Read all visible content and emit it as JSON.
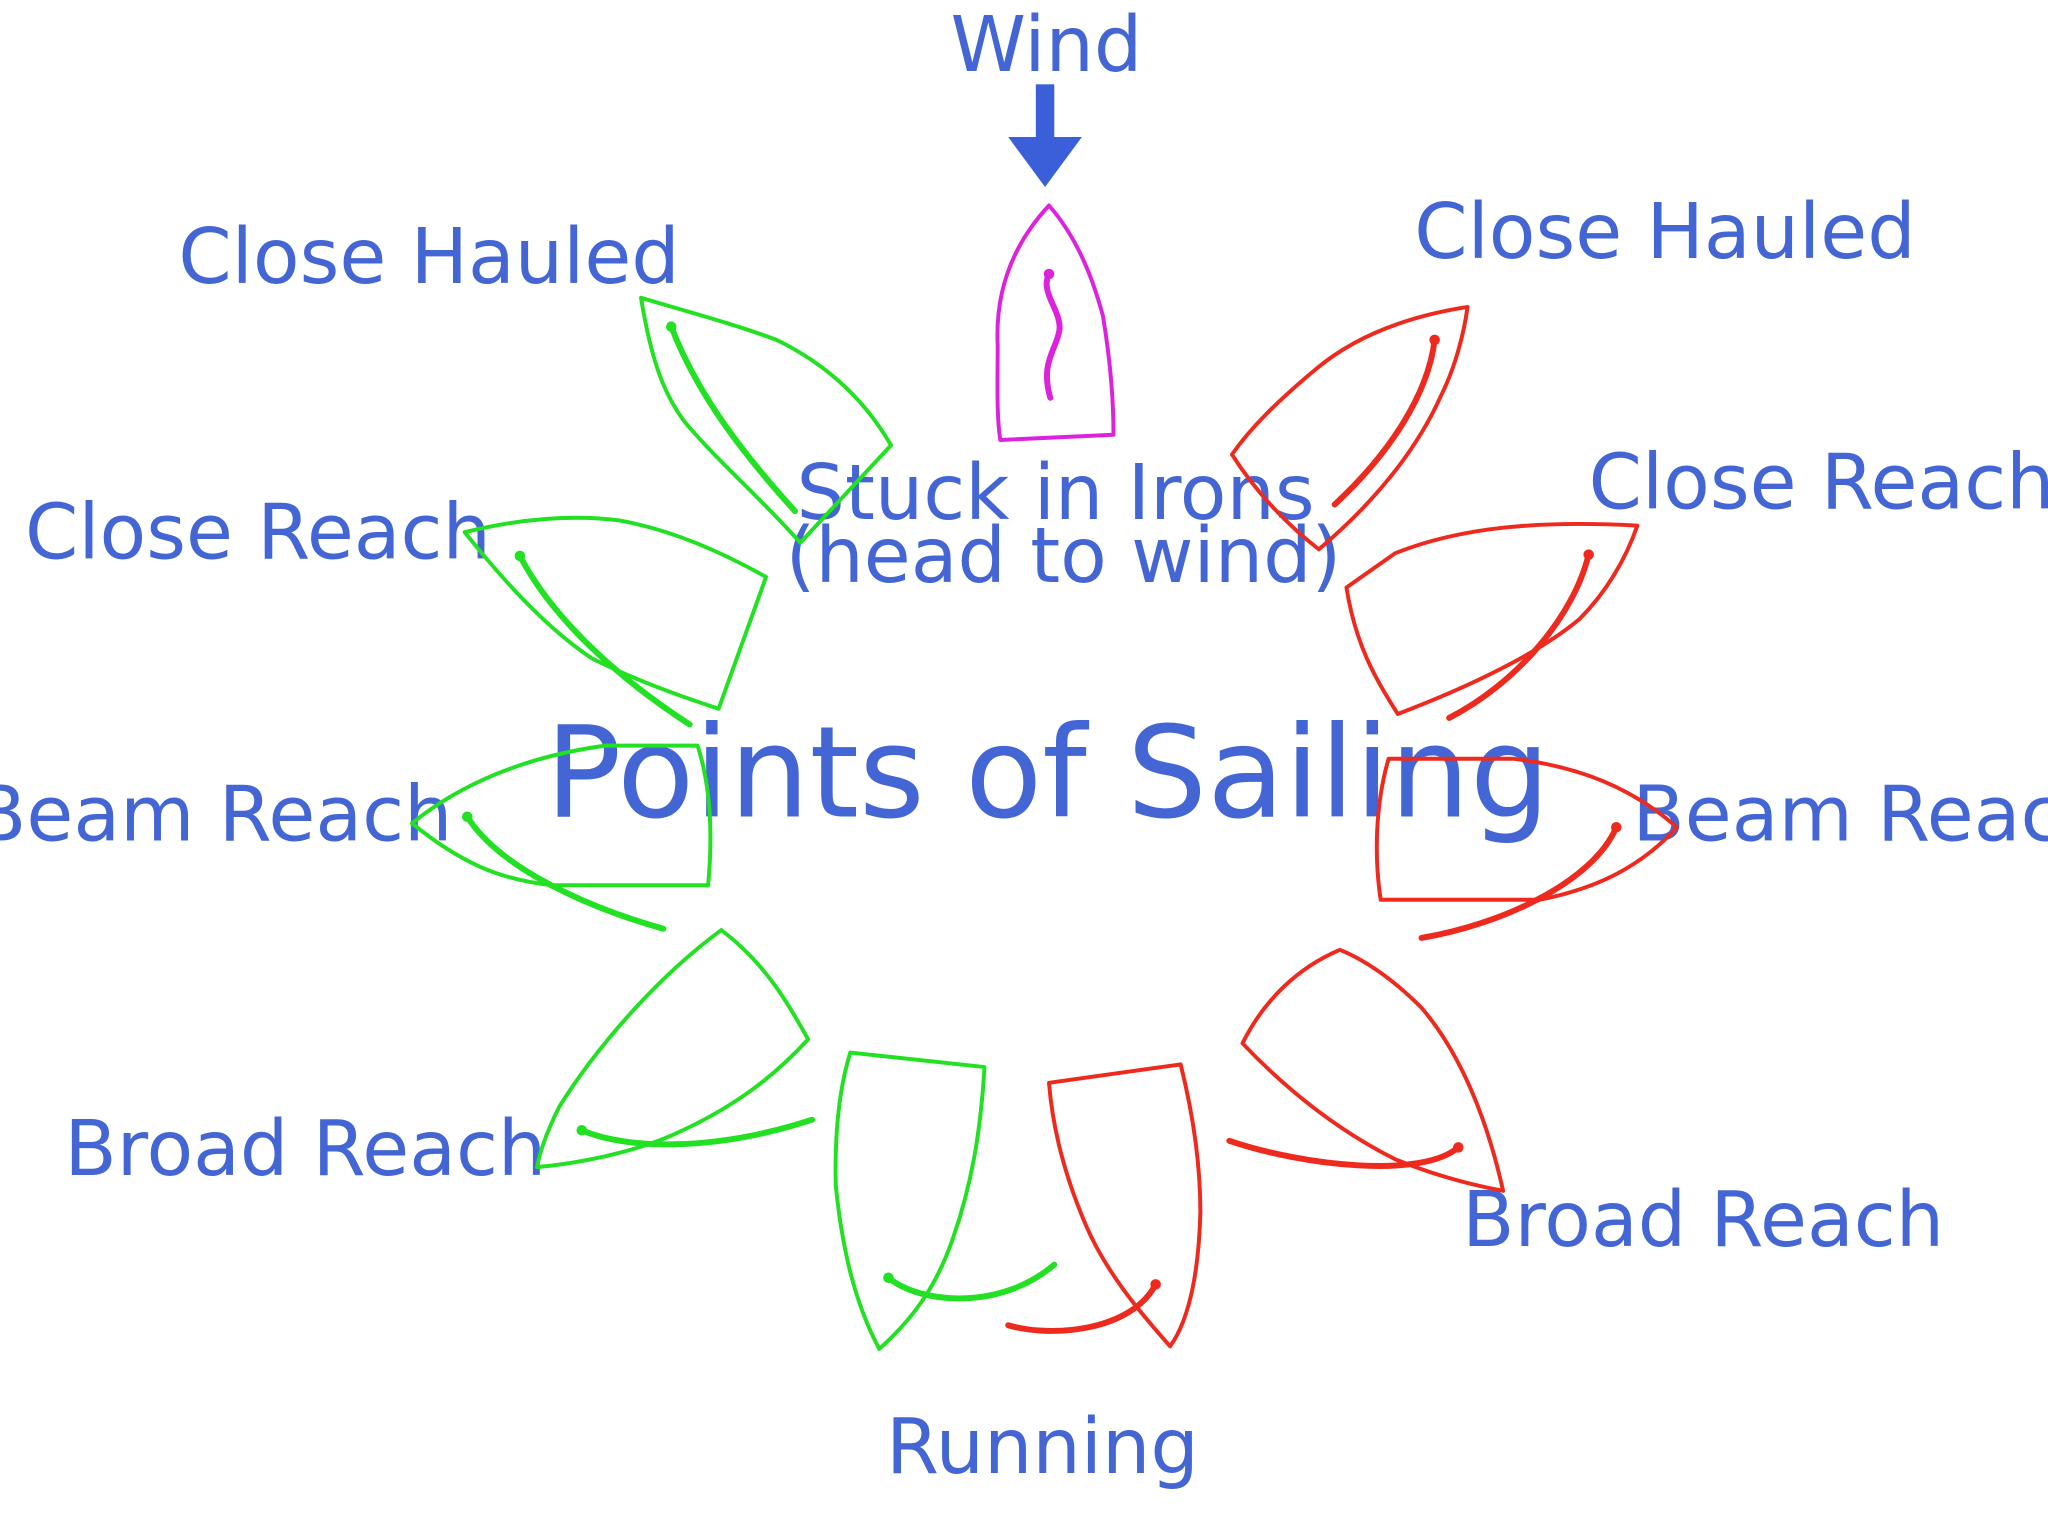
{
  "title": "Points of Sailing",
  "wind_label": "Wind",
  "irons": {
    "line1": "Stuck in Irons",
    "line2": "(head to wind)"
  },
  "starboard_labels": {
    "close_hauled": "Close Hauled",
    "close_reach": "Close Reach",
    "beam_reach": "Beam Reach",
    "broad_reach": "Broad Reach"
  },
  "port_labels": {
    "close_hauled": "Close Hauled",
    "close_reach": "Close Reach",
    "beam_reach": "Beam Reach",
    "broad_reach": "Broad Reach"
  },
  "running_label": "Running",
  "colors": {
    "text": "#4466d4",
    "wind_arrow": "#3a5fd8",
    "irons_boat": "#dd22dd",
    "left_boats": "#22e022",
    "right_boats": "#ee2a1e"
  }
}
